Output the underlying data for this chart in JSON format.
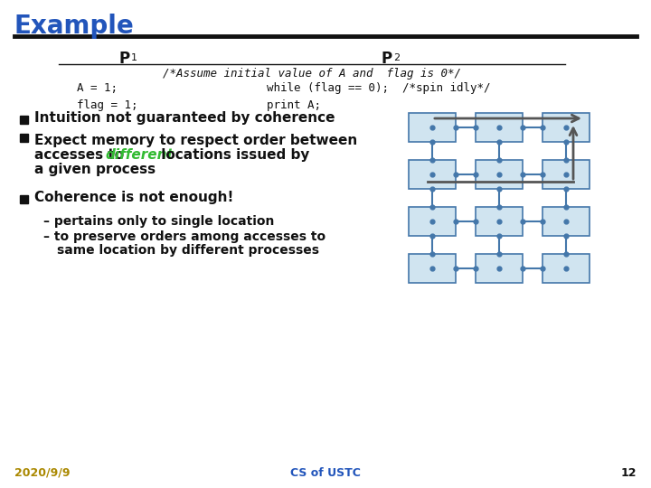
{
  "title": "Example",
  "title_color": "#2255BB",
  "title_fontsize": 20,
  "bg_color": "#FFFFFF",
  "header_line_color": "#111111",
  "p1_label": "P",
  "p2_label": "P",
  "p1_sub": "1",
  "p2_sub": "2",
  "assume_text": "/*Assume initial value of A and  flag is 0*/",
  "code_col1": [
    "A = 1;",
    "flag = 1;"
  ],
  "code_col2": [
    "while (flag == 0);  /*spin idly*/",
    "print A;"
  ],
  "bullet_color": "#111111",
  "bullet1": "Intuition not guaranteed by coherence",
  "bullet2_line1": "Expect memory to respect order between",
  "bullet2_line2_pre": "accesses to ",
  "bullet2_line2_diff": "different",
  "bullet2_line2_post": " locations issued by",
  "bullet2_line3": "a given process",
  "different_color": "#33BB33",
  "bullet3": "Coherence is not enough!",
  "sub1": "pertains only to single location",
  "sub2a": "to preserve orders among accesses to",
  "sub2b": "same location by different processes",
  "footer_date": "2020/9/9",
  "footer_date_color": "#AA8800",
  "footer_center": "CS of USTC",
  "footer_center_color": "#2255BB",
  "footer_page": "12",
  "footer_page_color": "#111111",
  "node_color": "#4477AA",
  "box_facecolor": "#D0E4F0",
  "box_edgecolor": "#4477AA",
  "arrow_color": "#555555"
}
